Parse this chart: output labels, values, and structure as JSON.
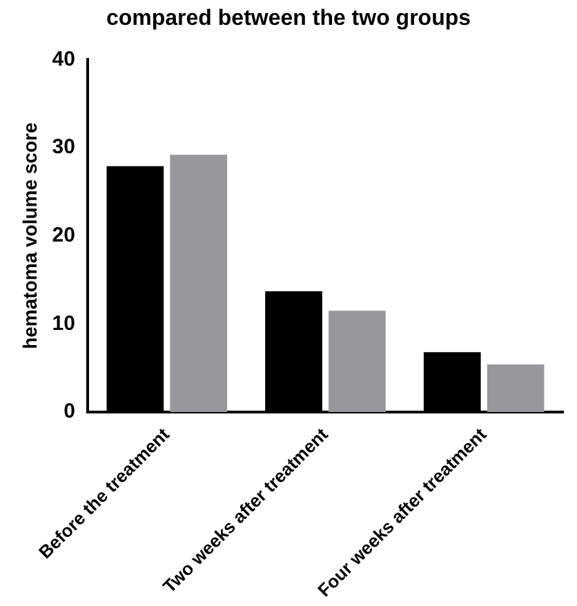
{
  "chart_data": {
    "type": "bar",
    "title": "compared between the two groups",
    "ylabel": "hematoma volume score",
    "categories": [
      "Before the treatment",
      "Two weeks after treatment",
      "Four weeks after treatment"
    ],
    "series": [
      {
        "color": "#000000",
        "values": [
          27.9,
          13.7,
          6.8
        ]
      },
      {
        "color": "#98989c",
        "values": [
          29.2,
          11.5,
          5.4
        ]
      }
    ],
    "ylim": [
      0,
      40
    ],
    "yticks": [
      0,
      10,
      20,
      30,
      40
    ],
    "grid": false,
    "legend": false
  }
}
